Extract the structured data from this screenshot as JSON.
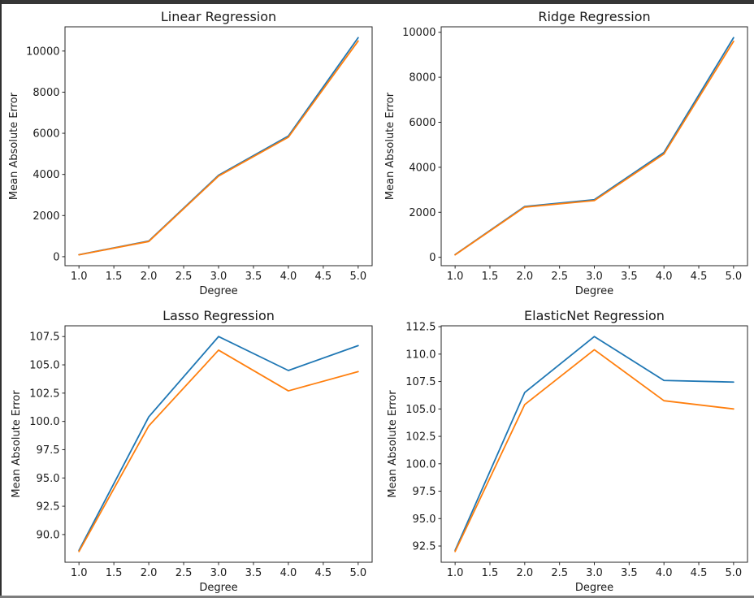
{
  "window": {
    "background": "#ffffff",
    "top_bar_color": "#363636",
    "left_edge_color": "#303030",
    "bottom_bar_color": "#7d7d7d",
    "text_color": "#1a1a1a",
    "spine_color": "#262626"
  },
  "chart_data": [
    {
      "type": "line",
      "title": "Linear Regression",
      "xlabel": "Degree",
      "ylabel": "Mean Absolute Error",
      "x": [
        1,
        2,
        3,
        4,
        5
      ],
      "xtick_labels": [
        "1.0",
        "1.5",
        "2.0",
        "2.5",
        "3.0",
        "3.5",
        "4.0",
        "4.5",
        "5.0"
      ],
      "ytick_labels": [
        "0",
        "2000",
        "4000",
        "6000",
        "8000",
        "10000"
      ],
      "xlim": [
        0.8,
        5.2
      ],
      "ylim": [
        -438,
        11178
      ],
      "grid": false,
      "legend": null,
      "series": [
        {
          "name": "line-1",
          "color": "#1f77b4",
          "values": [
            95,
            760,
            3960,
            5870,
            10650
          ]
        },
        {
          "name": "line-2",
          "color": "#ff7f0e",
          "values": [
            90,
            740,
            3920,
            5810,
            10490
          ]
        }
      ]
    },
    {
      "type": "line",
      "title": "Ridge Regression",
      "xlabel": "Degree",
      "ylabel": "Mean Absolute Error",
      "x": [
        1,
        2,
        3,
        4,
        5
      ],
      "xtick_labels": [
        "1.0",
        "1.5",
        "2.0",
        "2.5",
        "3.0",
        "3.5",
        "4.0",
        "4.5",
        "5.0"
      ],
      "ytick_labels": [
        "0",
        "2000",
        "4000",
        "6000",
        "8000",
        "10000"
      ],
      "xlim": [
        0.8,
        5.2
      ],
      "ylim": [
        -372.5,
        10242.5
      ],
      "grid": false,
      "legend": null,
      "series": [
        {
          "name": "line-1",
          "color": "#1f77b4",
          "values": [
            120,
            2260,
            2560,
            4660,
            9760
          ]
        },
        {
          "name": "line-2",
          "color": "#ff7f0e",
          "values": [
            110,
            2230,
            2520,
            4590,
            9600
          ]
        }
      ]
    },
    {
      "type": "line",
      "title": "Lasso Regression",
      "xlabel": "Degree",
      "ylabel": "Mean Absolute Error",
      "x": [
        1,
        2,
        3,
        4,
        5
      ],
      "xtick_labels": [
        "1.0",
        "1.5",
        "2.0",
        "2.5",
        "3.0",
        "3.5",
        "4.0",
        "4.5",
        "5.0"
      ],
      "ytick_labels": [
        "90.0",
        "92.5",
        "95.0",
        "97.5",
        "100.0",
        "102.5",
        "105.0",
        "107.5"
      ],
      "xlim": [
        0.8,
        5.2
      ],
      "ylim": [
        87.55,
        108.45
      ],
      "grid": false,
      "legend": null,
      "series": [
        {
          "name": "line-1",
          "color": "#1f77b4",
          "values": [
            88.6,
            100.4,
            107.5,
            104.5,
            106.7
          ]
        },
        {
          "name": "line-2",
          "color": "#ff7f0e",
          "values": [
            88.5,
            99.6,
            106.3,
            102.7,
            104.4
          ]
        }
      ]
    },
    {
      "type": "line",
      "title": "ElasticNet Regression",
      "xlabel": "Degree",
      "ylabel": "Mean Absolute Error",
      "x": [
        1,
        2,
        3,
        4,
        5
      ],
      "xtick_labels": [
        "1.0",
        "1.5",
        "2.0",
        "2.5",
        "3.0",
        "3.5",
        "4.0",
        "4.5",
        "5.0"
      ],
      "ytick_labels": [
        "92.5",
        "95.0",
        "97.5",
        "100.0",
        "102.5",
        "105.0",
        "107.5",
        "110.0",
        "112.5"
      ],
      "xlim": [
        0.8,
        5.2
      ],
      "ylim": [
        91.02,
        112.58
      ],
      "grid": false,
      "legend": null,
      "series": [
        {
          "name": "line-1",
          "color": "#1f77b4",
          "values": [
            92.1,
            106.5,
            111.6,
            107.6,
            107.45
          ]
        },
        {
          "name": "line-2",
          "color": "#ff7f0e",
          "values": [
            92.0,
            105.4,
            110.4,
            105.75,
            105.0
          ]
        }
      ]
    }
  ]
}
